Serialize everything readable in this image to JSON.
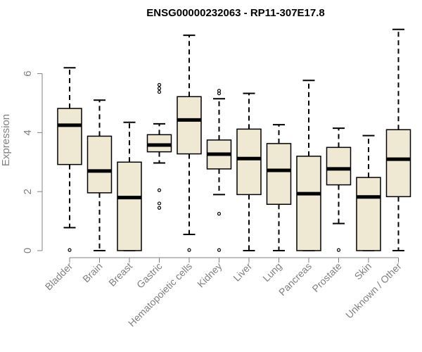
{
  "chart_data": {
    "type": "box",
    "title": "ENSG00000232063 - RP11-307E17.8",
    "xlabel": "",
    "ylabel": "Expression",
    "ylim": [
      0,
      7.6
    ],
    "yticks": [
      0,
      2,
      4,
      6
    ],
    "box_fill": "#efe9d3",
    "axis_color": "#808080",
    "categories": [
      "Bladder",
      "Brain",
      "Breast",
      "Gastric",
      "Hematopoietic cells",
      "Kidney",
      "Liver",
      "Lung",
      "Pancreas",
      "Prostate",
      "Skin",
      "Unknown / Other"
    ],
    "boxes": [
      {
        "whisker_low": 0.78,
        "q1": 2.92,
        "median": 4.25,
        "q3": 4.82,
        "whisker_high": 6.2,
        "outliers": [
          0.02
        ]
      },
      {
        "whisker_low": 0.0,
        "q1": 1.96,
        "median": 2.7,
        "q3": 3.88,
        "whisker_high": 5.1,
        "outliers": []
      },
      {
        "whisker_low": 0.0,
        "q1": 0.0,
        "median": 1.8,
        "q3": 3.0,
        "whisker_high": 4.35,
        "outliers": []
      },
      {
        "whisker_low": 2.97,
        "q1": 3.35,
        "median": 3.58,
        "q3": 3.93,
        "whisker_high": 4.3,
        "outliers": [
          5.62,
          5.5,
          5.38,
          2.05,
          1.6,
          1.45
        ]
      },
      {
        "whisker_low": 0.55,
        "q1": 3.28,
        "median": 4.43,
        "q3": 5.22,
        "whisker_high": 7.3,
        "outliers": [
          0.02
        ]
      },
      {
        "whisker_low": 1.9,
        "q1": 2.77,
        "median": 3.27,
        "q3": 3.75,
        "whisker_high": 5.15,
        "outliers": [
          5.42,
          5.33,
          1.25,
          0.02
        ]
      },
      {
        "whisker_low": 0.0,
        "q1": 1.9,
        "median": 3.12,
        "q3": 4.12,
        "whisker_high": 5.33,
        "outliers": []
      },
      {
        "whisker_low": 0.0,
        "q1": 1.57,
        "median": 2.72,
        "q3": 3.63,
        "whisker_high": 4.27,
        "outliers": []
      },
      {
        "whisker_low": 0.0,
        "q1": 0.0,
        "median": 1.93,
        "q3": 3.2,
        "whisker_high": 5.77,
        "outliers": []
      },
      {
        "whisker_low": 0.92,
        "q1": 2.23,
        "median": 2.77,
        "q3": 3.5,
        "whisker_high": 4.15,
        "outliers": [
          0.02
        ]
      },
      {
        "whisker_low": 0.0,
        "q1": 0.0,
        "median": 1.82,
        "q3": 2.48,
        "whisker_high": 3.9,
        "outliers": []
      },
      {
        "whisker_low": 0.0,
        "q1": 1.83,
        "median": 3.1,
        "q3": 4.1,
        "whisker_high": 7.5,
        "outliers": []
      }
    ]
  }
}
